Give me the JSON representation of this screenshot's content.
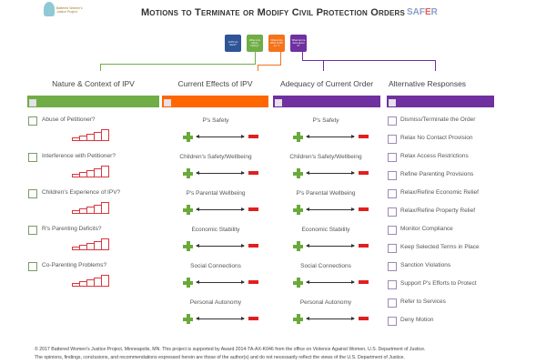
{
  "header": {
    "title": "Motions to Terminate or Modify Civil Protection Orders",
    "logo_text": "Battered Women's Justice Project",
    "brand_left": "SAF",
    "brand_mid": "E",
    "brand_right": "R"
  },
  "questions": [
    {
      "text": "Is IPV an issue?",
      "color": "#2f5597"
    },
    {
      "text": "What is its abuse history?",
      "color": "#70ad47"
    },
    {
      "text": "What is the effect of IPV on...?",
      "color": "#f4731c"
    },
    {
      "text": "What can be done about it?",
      "color": "#7030a0"
    }
  ],
  "columns": {
    "nature": {
      "title": "Nature & Context of IPV",
      "color": "#70ad47",
      "items": [
        "Abuse of Petitioner?",
        "Interference with Petitioner?",
        "Children's Experience of IPV?",
        "R's Parenting Deficits?",
        "Co-Parenting Problems?"
      ]
    },
    "effects": {
      "title": "Current Effects of IPV",
      "color": "#ff6600",
      "items": [
        "P's Safety",
        "Children's Safety/Wellbeing",
        "P's Parental Wellbeing",
        "Economic Stability",
        "Social Connections",
        "Personal Autonomy"
      ]
    },
    "adequacy": {
      "title": "Adequacy of Current Order",
      "color": "#7030a0",
      "items": [
        "P's Safety",
        "Children's Safety/Wellbeing",
        "P's Parental Wellbeing",
        "Economic Stability",
        "Social Connections",
        "Personal Autonomy"
      ]
    },
    "alternatives": {
      "title": "Alternative Responses",
      "color": "#7030a0",
      "items": [
        "Dismiss/Terminate the Order",
        "Relax No Contact Provision",
        "Relax Access Restrictions",
        "Refine Parenting Provisions",
        "Relax/Refine Economic Relief",
        "Relax/Refine Property Relief",
        "Monitor Compliance",
        "Keep Selected Terms in Place",
        "Sanction Violations",
        "Support P's Efforts to Protect",
        "Refer to Services",
        "Deny Motion"
      ]
    }
  },
  "footer": {
    "line1": "© 2017 Battered Women's Justice Project, Minneapolis, MN.  This project is supported by Award 2014-TA-AX-K046 from the office on Violence Against Women, U.S. Department of Justice.",
    "line2": "The opinions, findings, conclusions, and recommendations expressed herein are those of the author(s) and do not necessarily reflect the views of the U.S. Department of Justice."
  }
}
